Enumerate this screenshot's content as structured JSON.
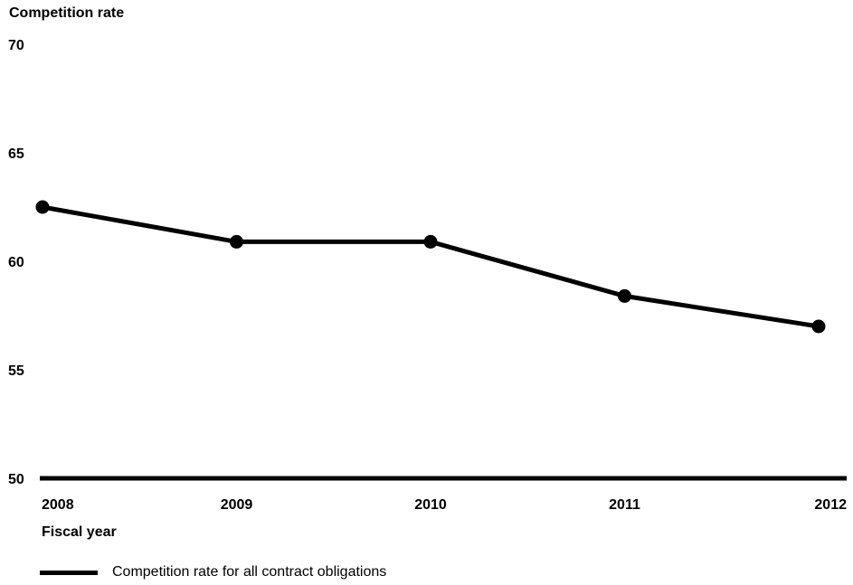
{
  "chart_data": {
    "type": "line",
    "ylabel": "Competition rate",
    "xlabel": "Fiscal year",
    "categories": [
      "2008",
      "2009",
      "2010",
      "2011",
      "2012"
    ],
    "series": [
      {
        "name": "Competition rate for all contract obligations",
        "values": [
          62.5,
          60.9,
          60.9,
          58.4,
          57.0
        ]
      }
    ],
    "ylim": [
      50,
      70
    ],
    "yticks": [
      70,
      65,
      60,
      55,
      50
    ],
    "grid": false,
    "legend_position": "bottom-left",
    "line_color": "#000000"
  }
}
